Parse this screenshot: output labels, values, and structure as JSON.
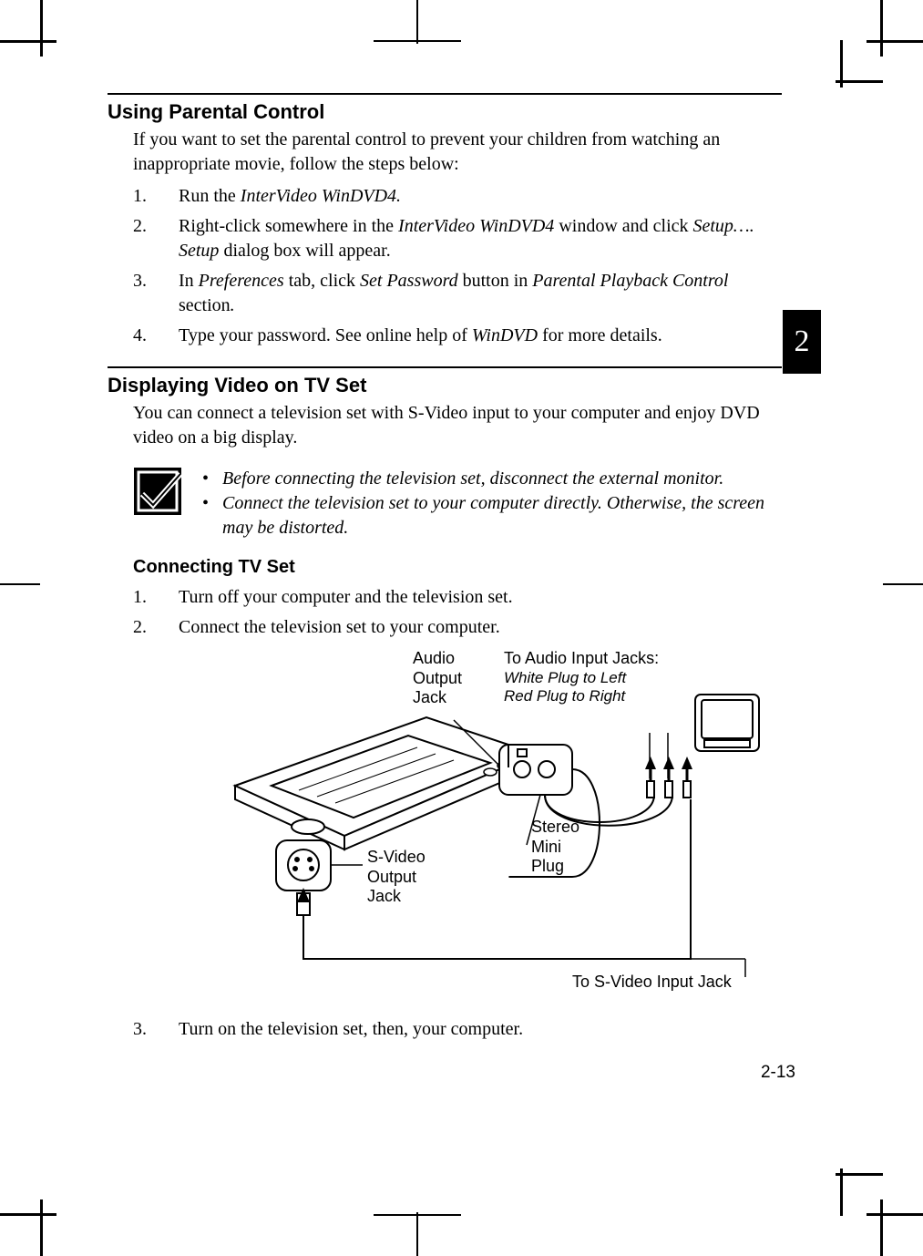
{
  "colors": {
    "text": "#000000",
    "background": "#ffffff",
    "tab_bg": "#000000",
    "tab_text": "#ffffff"
  },
  "tab": {
    "number": "2"
  },
  "page_number": "2-13",
  "section1": {
    "heading": "Using Parental Control",
    "intro": "If you want to set the parental control to prevent your children from watching an inappropriate movie, follow the steps below:",
    "steps": [
      {
        "n": "1.",
        "html": "Run the <span class='em'>InterVideo WinDVD4.</span>"
      },
      {
        "n": "2.",
        "html": "Right-click somewhere in the <span class='em'>InterVideo WinDVD4</span> window and click <span class='em'>Setup….</span> <span class='em'>Setup</span> dialog box will appear."
      },
      {
        "n": "3.",
        "html": "In <span class='em'>Preferences</span> tab, click <span class='em'>Set Password</span> button in <span class='em'>Parental Playback Control</span> section<span class='em'>.</span>"
      },
      {
        "n": "4.",
        "html": "Type your password. See online help of <span class='em'>WinDVD</span> for more details."
      }
    ]
  },
  "section2": {
    "heading": "Displaying Video on TV Set",
    "intro": "You can connect a television set with S-Video input to your computer and enjoy DVD video on a big display.",
    "notes": [
      "Before connecting the television set, disconnect the external monitor.",
      "Connect the television set to your computer directly. Otherwise, the screen may be distorted."
    ],
    "sub_heading": "Connecting TV Set",
    "steps": [
      {
        "n": "1.",
        "html": "Turn off your computer and the television set."
      },
      {
        "n": "2.",
        "html": "Connect the television set to your computer."
      }
    ],
    "step3": {
      "n": "3.",
      "html": "Turn on the television set, then, your computer."
    }
  },
  "diagram": {
    "labels": {
      "audio_out": "Audio\nOutput\nJack",
      "to_audio": "To Audio Input Jacks:",
      "to_audio_sub": "White Plug to Left\nRed Plug to Right",
      "svideo_out": "S-Video\nOutput\nJack",
      "stereo": "Stereo\nMini\nPlug",
      "to_svideo": "To S-Video Input Jack"
    },
    "stroke": "#000000",
    "stroke_width": 2
  }
}
